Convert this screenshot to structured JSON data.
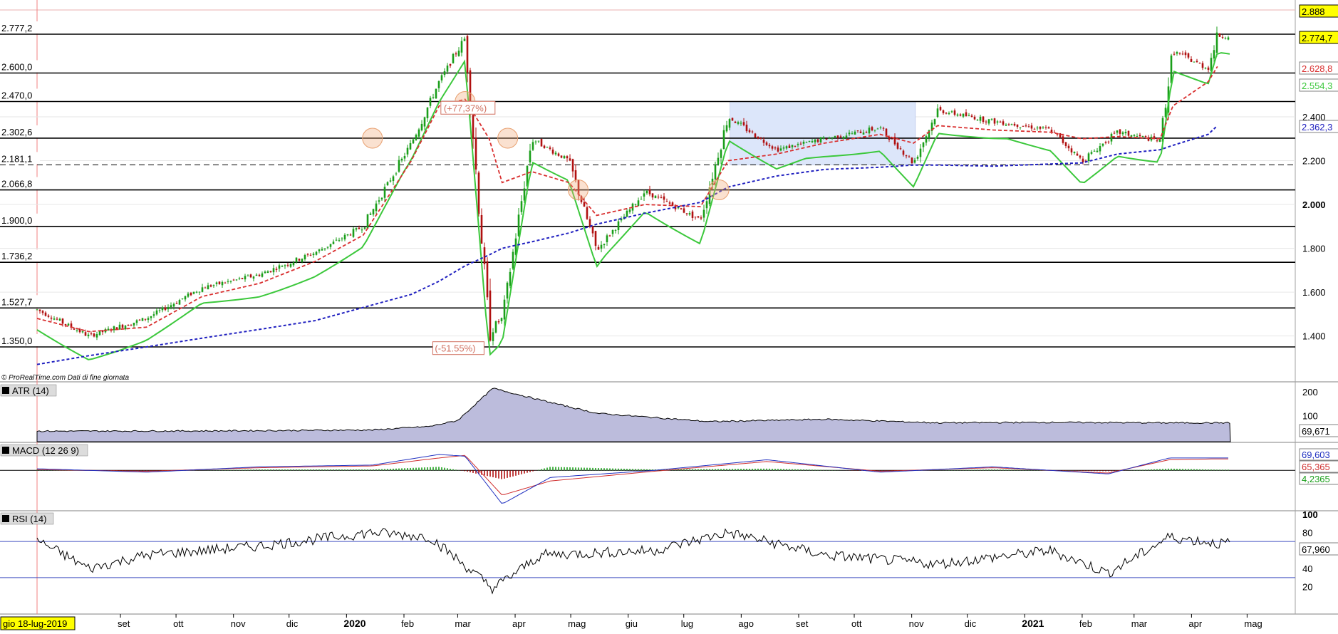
{
  "watermark": "© ProRealTime.com  Dati di fine giornata",
  "cursor_date": "gio 18-lug-2019",
  "colors": {
    "price_up": "#1a9e1a",
    "price_down": "#b01010",
    "ema_red": "#d93030",
    "sma_blue": "#2020c0",
    "trail_green": "#3cc83c",
    "trail_red": "#d04040",
    "range_box": "#dce6fa",
    "atr_fill": "#bcbcdc",
    "macd_line": "#2030c0",
    "signal_line": "#d03030",
    "rsi_line": "#000000",
    "label_yellow": "#ffff00",
    "annotation": "#d07060"
  },
  "axis_months": [
    "set",
    "ott",
    "nov",
    "dic",
    "2020",
    "feb",
    "mar",
    "apr",
    "mag",
    "giu",
    "lug",
    "ago",
    "set",
    "ott",
    "nov",
    "dic",
    "2021",
    "feb",
    "mar",
    "apr",
    "mag"
  ],
  "level_labels": [
    "2.777,2",
    "2.600,0",
    "2.470,0",
    "2.302,6",
    "2.181,1",
    "2.066,8",
    "1.900,0",
    "1.736,2",
    "1.527,7",
    "1.350,0"
  ],
  "annotations": {
    "gain": "(+77,37%)",
    "loss": "(-51.55%)"
  },
  "panels": {
    "price": {
      "right_labels": [
        {
          "text": "2.888",
          "bg": "#ffff00",
          "fg": "#000000"
        },
        {
          "text": "2.774,7",
          "bg": "#ffff00",
          "fg": "#000000"
        },
        {
          "text": "2.628,8",
          "bg": "#ffffff",
          "fg": "#d93030"
        },
        {
          "text": "2.554,3",
          "bg": "#ffffff",
          "fg": "#3cc83c"
        },
        {
          "text": "2.362,3",
          "bg": "#ffffff",
          "fg": "#2020c0"
        }
      ]
    },
    "atr": {
      "label": "ATR (14)",
      "value": "69,671"
    },
    "macd": {
      "label": "MACD (12 26 9)",
      "values": [
        "69,603",
        "65,365",
        "4,2365"
      ]
    },
    "rsi": {
      "label": "RSI (14)",
      "value": "67,960"
    }
  },
  "chart_data": [
    {
      "type": "line",
      "title": "",
      "ylim": [
        1250,
        2900
      ],
      "grid": true,
      "y_ticks": [
        1400,
        1600,
        1800,
        2000,
        2200,
        2400
      ],
      "y_tick_labels": [
        "1.400",
        "1.600",
        "1.800",
        "2.000",
        "2.200",
        "2.400"
      ],
      "horizontal_levels": [
        2777.2,
        2600.0,
        2470.0,
        2302.6,
        2181.1,
        2066.8,
        1900.0,
        1736.2,
        1527.7,
        1350.0
      ],
      "highlighted_range": [
        2181.1,
        2470.0
      ],
      "x": [
        "2019-07-18",
        "2019-08-15",
        "2019-09-15",
        "2019-10-15",
        "2019-11-15",
        "2019-12-15",
        "2020-01-10",
        "2020-02-05",
        "2020-02-20",
        "2020-03-05",
        "2020-03-18",
        "2020-03-25",
        "2020-04-10",
        "2020-04-30",
        "2020-05-15",
        "2020-06-10",
        "2020-07-10",
        "2020-07-25",
        "2020-08-20",
        "2020-09-15",
        "2020-10-15",
        "2020-11-02",
        "2020-11-15",
        "2020-12-15",
        "2021-01-15",
        "2021-02-01",
        "2021-02-20",
        "2021-03-15",
        "2021-03-22",
        "2021-04-10",
        "2021-04-15"
      ],
      "series": [
        {
          "values": [
            1520,
            1400,
            1480,
            1620,
            1680,
            1780,
            1900,
            2280,
            2560,
            2760,
            1420,
            1480,
            2300,
            2200,
            1790,
            2060,
            1930,
            2400,
            2250,
            2300,
            2350,
            2190,
            2430,
            2380,
            2340,
            2200,
            2330,
            2290,
            2700,
            2620,
            2770
          ]
        },
        {
          "values": [
            1480,
            1420,
            1440,
            1580,
            1640,
            1740,
            1860,
            2200,
            2450,
            2480,
            2300,
            2100,
            2150,
            2100,
            1950,
            2000,
            1990,
            2200,
            2230,
            2280,
            2320,
            2280,
            2360,
            2340,
            2330,
            2300,
            2310,
            2300,
            2450,
            2560,
            2630
          ]
        },
        {
          "values": [
            1270,
            1310,
            1350,
            1390,
            1430,
            1470,
            1530,
            1590,
            1650,
            1720,
            1770,
            1800,
            1830,
            1870,
            1910,
            1960,
            2010,
            2080,
            2130,
            2160,
            2170,
            2180,
            2180,
            2175,
            2185,
            2190,
            2230,
            2250,
            2270,
            2320,
            2360
          ]
        }
      ]
    },
    {
      "type": "area",
      "title": "",
      "y_ticks": [
        100,
        200
      ],
      "y_tick_labels": [
        "100",
        "200"
      ],
      "ylim": [
        0,
        230
      ],
      "x": [
        "2019-07",
        "2019-10",
        "2020-01",
        "2020-02",
        "2020-03-01",
        "2020-03-20",
        "2020-04-15",
        "2020-05",
        "2020-07",
        "2020-09",
        "2020-11",
        "2021-01",
        "2021-03",
        "2021-04"
      ],
      "series": [
        {
          "values": [
            35,
            36,
            40,
            55,
            80,
            215,
            165,
            110,
            75,
            85,
            70,
            72,
            70,
            70
          ]
        }
      ]
    },
    {
      "type": "line",
      "title": "",
      "ylim": [
        -200,
        130
      ],
      "x": [
        "2019-07",
        "2019-09",
        "2019-11",
        "2020-01",
        "2020-02-20",
        "2020-03-05",
        "2020-03-25",
        "2020-04-20",
        "2020-06",
        "2020-08",
        "2020-10",
        "2020-12",
        "2021-02",
        "2021-03-20",
        "2021-04"
      ],
      "series": [
        {
          "values": [
            10,
            -10,
            20,
            30,
            90,
            80,
            -190,
            -40,
            0,
            60,
            -10,
            20,
            -20,
            70,
            70
          ]
        },
        {
          "values": [
            5,
            -5,
            15,
            25,
            70,
            85,
            -140,
            -60,
            -5,
            50,
            -5,
            15,
            -15,
            60,
            65
          ]
        },
        {
          "values": [
            5,
            -5,
            5,
            5,
            20,
            -5,
            -50,
            20,
            5,
            10,
            -5,
            5,
            -5,
            10,
            4
          ]
        }
      ]
    },
    {
      "type": "line",
      "title": "",
      "ylim": [
        0,
        100
      ],
      "y_ticks": [
        20,
        40,
        60,
        80,
        100
      ],
      "y_tick_labels": [
        "20",
        "40",
        "60",
        "80",
        "100"
      ],
      "bands": [
        70,
        30
      ],
      "x": [
        "2019-07",
        "2019-08",
        "2019-09",
        "2019-11",
        "2020-01",
        "2020-02",
        "2020-03-20",
        "2020-04",
        "2020-06",
        "2020-07-25",
        "2020-09",
        "2020-11",
        "2021-01",
        "2021-02",
        "2021-03-20",
        "2021-04"
      ],
      "series": [
        {
          "values": [
            75,
            40,
            55,
            65,
            80,
            75,
            18,
            55,
            60,
            80,
            55,
            45,
            60,
            35,
            75,
            68
          ]
        }
      ]
    }
  ]
}
